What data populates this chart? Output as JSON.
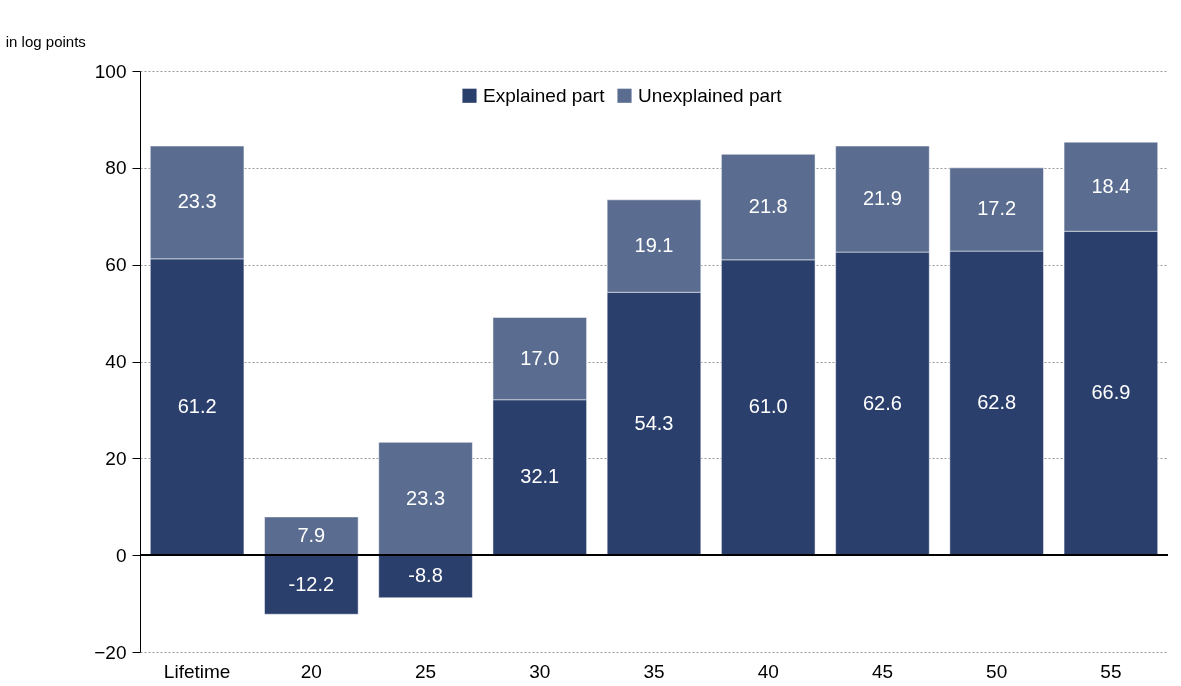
{
  "chart_data": {
    "type": "bar",
    "ylabel": "in log points",
    "stacked": true,
    "legend": "top",
    "grid": "y",
    "categories": [
      "Lifetime",
      "20",
      "25",
      "30",
      "35",
      "40",
      "45",
      "50",
      "55"
    ],
    "series": [
      {
        "name": "Explained part",
        "color": "#2b3f6c",
        "values": [
          61.2,
          -12.2,
          -8.8,
          32.1,
          54.3,
          61.0,
          62.6,
          62.8,
          66.9
        ],
        "value_labels": [
          "61.2",
          "-12.2",
          "-8.8",
          "32.1",
          "54.3",
          "61.0",
          "62.6",
          "62.8",
          "66.9"
        ]
      },
      {
        "name": "Unexplained part",
        "color": "#5a6d90",
        "values": [
          23.3,
          7.9,
          23.3,
          17.0,
          19.1,
          21.8,
          21.9,
          17.2,
          18.4
        ],
        "value_labels": [
          "23.3",
          "7.9",
          "23.3",
          "17.0",
          "19.1",
          "21.8",
          "21.9",
          "17.2",
          "18.4"
        ]
      }
    ],
    "ylim": [
      -20,
      100
    ],
    "yticks": [
      -20,
      0,
      20,
      40,
      60,
      80,
      100
    ]
  }
}
